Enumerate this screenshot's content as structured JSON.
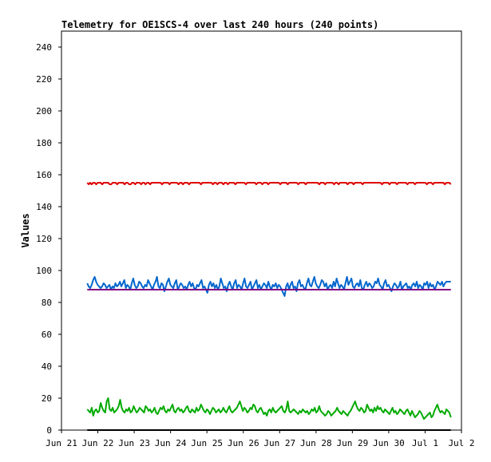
{
  "chart_data": {
    "type": "line",
    "title": "Telemetry for OE1SCS-4 over last 240 hours (240 points)",
    "xlabel": "",
    "ylabel": "Values",
    "xlim": [
      "2021-06-21",
      "2021-07-02"
    ],
    "ylim": [
      0,
      250
    ],
    "yticks": [
      0,
      20,
      40,
      60,
      80,
      100,
      120,
      140,
      160,
      180,
      200,
      220,
      240
    ],
    "xticks": [
      "2021-06-21",
      "2021-06-22",
      "2021-06-23",
      "2021-06-24",
      "2021-06-25",
      "2021-06-26",
      "2021-06-27",
      "2021-06-28",
      "2021-06-29",
      "2021-06-30",
      "2021-07-01",
      "2021-07-02"
    ],
    "xtick_labels": [
      "Jun 21",
      "Jun 22",
      "Jun 23",
      "Jun 24",
      "Jun 25",
      "Jun 26",
      "Jun 27",
      "Jun 28",
      "Jun 29",
      "Jun 30",
      "Jul 1",
      "Jul 2"
    ],
    "grid": false,
    "legend": "none",
    "x_start": "2021-06-21T17:00",
    "x_end": "2021-07-01T17:00",
    "series": [
      {
        "color": "#dd0000",
        "values": [
          155,
          154,
          155,
          154,
          155,
          155,
          154,
          155,
          155,
          155,
          154,
          155,
          155,
          155,
          155,
          154,
          154,
          155,
          155,
          155,
          154,
          155,
          155,
          155,
          155,
          154,
          155,
          155,
          154,
          154,
          155,
          155,
          154,
          155,
          155,
          155,
          154,
          155,
          155,
          154,
          155,
          155,
          154,
          155,
          155,
          155,
          155,
          155,
          155,
          155,
          154,
          155,
          155,
          155,
          155,
          154,
          155,
          155,
          155,
          155,
          155,
          154,
          155,
          155,
          154,
          155,
          155,
          155,
          154,
          155,
          155,
          155,
          155,
          155,
          155,
          155,
          154,
          155,
          155,
          155,
          155,
          155,
          155,
          155,
          154,
          155,
          155,
          154,
          155,
          155,
          155,
          154,
          155,
          155,
          154,
          155,
          155,
          155,
          155,
          154,
          155,
          155,
          155,
          155,
          155,
          155,
          154,
          155,
          155,
          155,
          155,
          155,
          155,
          154,
          155,
          155,
          155,
          154,
          155,
          155,
          155,
          154,
          155,
          155,
          155,
          155,
          155,
          155,
          155,
          154,
          155,
          155,
          155,
          155,
          154,
          155,
          155,
          155,
          155,
          155,
          155,
          154,
          155,
          155,
          155,
          155,
          154,
          155,
          155,
          155,
          155,
          155,
          155,
          155,
          155,
          154,
          155,
          155,
          155,
          154,
          155,
          155,
          155,
          155,
          155,
          154,
          155,
          155,
          154,
          155,
          155,
          155,
          155,
          155,
          154,
          155,
          155,
          155,
          154,
          155,
          155,
          155,
          155,
          155,
          154,
          155,
          155,
          155,
          155,
          155,
          155,
          155,
          155,
          155,
          155,
          155,
          155,
          154,
          155,
          155,
          155,
          155,
          154,
          155,
          155,
          155,
          155,
          154,
          155,
          155,
          155,
          155,
          155,
          155,
          154,
          155,
          155,
          155,
          155,
          154,
          155,
          155,
          155,
          155,
          155,
          155,
          155,
          154,
          155,
          155,
          155,
          154,
          155,
          155,
          155,
          155,
          155,
          155,
          155,
          154,
          155,
          155,
          155,
          154
        ]
      },
      {
        "color": "#0066cc",
        "values": [
          92,
          90,
          89,
          91,
          94,
          96,
          93,
          91,
          90,
          89,
          90,
          92,
          91,
          89,
          90,
          91,
          88,
          90,
          89,
          92,
          90,
          91,
          93,
          90,
          92,
          94,
          89,
          91,
          90,
          88,
          92,
          95,
          91,
          89,
          90,
          93,
          92,
          90,
          89,
          91,
          90,
          94,
          92,
          90,
          88,
          91,
          93,
          96,
          90,
          89,
          92,
          91,
          87,
          90,
          93,
          95,
          91,
          90,
          89,
          92,
          94,
          88,
          90,
          92,
          91,
          89,
          90,
          88,
          91,
          93,
          90,
          92,
          89,
          88,
          91,
          90,
          92,
          94,
          89,
          90,
          88,
          86,
          91,
          93,
          90,
          92,
          89,
          91,
          88,
          90,
          95,
          92,
          89,
          90,
          87,
          91,
          93,
          90,
          88,
          92,
          94,
          89,
          91,
          90,
          88,
          92,
          95,
          90,
          89,
          91,
          93,
          88,
          90,
          92,
          94,
          89,
          91,
          88,
          90,
          92,
          91,
          89,
          93,
          90,
          88,
          91,
          90,
          92,
          89,
          91,
          90,
          88,
          86,
          84,
          90,
          92,
          88,
          91,
          93,
          89,
          90,
          87,
          92,
          94,
          90,
          91,
          89,
          88,
          92,
          95,
          91,
          90,
          93,
          96,
          92,
          90,
          89,
          91,
          94,
          93,
          90,
          92,
          88,
          90,
          91,
          89,
          93,
          90,
          95,
          92,
          89,
          91,
          90,
          88,
          92,
          96,
          91,
          93,
          95,
          90,
          89,
          91,
          92,
          90,
          94,
          89,
          88,
          91,
          93,
          90,
          92,
          91,
          89,
          90,
          93,
          92,
          95,
          91,
          90,
          88,
          92,
          94,
          90,
          91,
          89,
          87,
          90,
          92,
          91,
          89,
          90,
          93,
          88,
          90,
          91,
          92,
          89,
          90,
          88,
          91,
          92,
          90,
          93,
          89,
          91,
          90,
          88,
          92,
          91,
          93,
          89,
          92,
          90,
          91,
          88,
          90,
          93,
          92,
          91,
          93,
          90,
          92,
          93,
          93,
          93,
          93
        ]
      },
      {
        "color": "#800080",
        "values": [
          88,
          88,
          88,
          88,
          88,
          88,
          88,
          88,
          88,
          88,
          88,
          88,
          88,
          88,
          88,
          88,
          88,
          88,
          88,
          88,
          88,
          88,
          88,
          88,
          88,
          88,
          88,
          88,
          88,
          88,
          88,
          88,
          88,
          88,
          88,
          88,
          88,
          88,
          88,
          88,
          88,
          88,
          88,
          88,
          88,
          88,
          88,
          88,
          88,
          88,
          88,
          88,
          88,
          88,
          88,
          88,
          88,
          88,
          88,
          88,
          88,
          88,
          88,
          88,
          88,
          88,
          88,
          88,
          88,
          88,
          88,
          88,
          88,
          88,
          88,
          88,
          88,
          88,
          88,
          88,
          88,
          88,
          88,
          88,
          88,
          88,
          88,
          88,
          88,
          88,
          88,
          88,
          88,
          88,
          88,
          88,
          88,
          88,
          88,
          88,
          88,
          88,
          88,
          88,
          88,
          88,
          88,
          88,
          88,
          88,
          88,
          88,
          88,
          88,
          88,
          88,
          88,
          88,
          88,
          88,
          88,
          88,
          88,
          88,
          88,
          88,
          88,
          88,
          88,
          88,
          88,
          88,
          88,
          88,
          88,
          88,
          88,
          88,
          88,
          88,
          88,
          88,
          88,
          88,
          88,
          88,
          88,
          88,
          88,
          88,
          88,
          88,
          88,
          88,
          88,
          88,
          88,
          88,
          88,
          88,
          88,
          88,
          88,
          88,
          88,
          88,
          88,
          88,
          88,
          88,
          88,
          88,
          88,
          88,
          88,
          88,
          88,
          88,
          88,
          88,
          88,
          88,
          88,
          88,
          88,
          88,
          88,
          88,
          88,
          88,
          88,
          88,
          88,
          88,
          88,
          88,
          88,
          88,
          88,
          88,
          88,
          88,
          88,
          88,
          88,
          88,
          88,
          88,
          88,
          88,
          88,
          88,
          88,
          88,
          88,
          88,
          88,
          88,
          88,
          88,
          88,
          88,
          88,
          88,
          88,
          88,
          88,
          88,
          88,
          88,
          88,
          88,
          88,
          88,
          88,
          88,
          88,
          88,
          88,
          88
        ]
      },
      {
        "color": "#00aa00",
        "values": [
          13,
          12,
          11,
          14,
          9,
          12,
          13,
          11,
          12,
          17,
          14,
          12,
          11,
          18,
          20,
          13,
          12,
          14,
          11,
          12,
          13,
          15,
          19,
          14,
          12,
          11,
          13,
          12,
          14,
          11,
          12,
          15,
          13,
          11,
          12,
          14,
          13,
          12,
          11,
          15,
          14,
          12,
          13,
          11,
          12,
          14,
          11,
          10,
          12,
          14,
          13,
          15,
          12,
          11,
          13,
          12,
          14,
          16,
          12,
          11,
          13,
          14,
          12,
          13,
          11,
          12,
          14,
          15,
          12,
          11,
          13,
          12,
          11,
          14,
          12,
          13,
          16,
          14,
          12,
          11,
          13,
          12,
          10,
          12,
          14,
          13,
          11,
          12,
          13,
          11,
          12,
          14,
          12,
          11,
          13,
          15,
          12,
          11,
          12,
          13,
          14,
          16,
          18,
          15,
          12,
          14,
          13,
          11,
          12,
          14,
          13,
          16,
          15,
          12,
          11,
          13,
          14,
          12,
          10,
          11,
          9,
          12,
          13,
          11,
          14,
          12,
          11,
          12,
          13,
          14,
          15,
          12,
          11,
          13,
          18,
          12,
          11,
          12,
          13,
          12,
          11,
          10,
          12,
          11,
          13,
          12,
          11,
          12,
          10,
          11,
          13,
          12,
          14,
          11,
          12,
          15,
          12,
          11,
          10,
          9,
          10,
          12,
          11,
          9,
          10,
          11,
          12,
          14,
          12,
          11,
          10,
          12,
          11,
          10,
          9,
          11,
          12,
          14,
          16,
          18,
          15,
          13,
          12,
          14,
          13,
          11,
          12,
          16,
          14,
          12,
          13,
          11,
          14,
          12,
          15,
          13,
          14,
          12,
          11,
          13,
          12,
          11,
          10,
          12,
          14,
          11,
          12,
          10,
          11,
          13,
          12,
          11,
          10,
          12,
          13,
          11,
          9,
          12,
          10,
          8,
          9,
          10,
          12,
          11,
          9,
          7,
          8,
          9,
          10,
          11,
          8,
          9,
          12,
          14,
          16,
          13,
          11,
          12,
          11,
          10,
          13,
          12,
          11,
          8
        ]
      },
      {
        "color": "#000000",
        "values": [
          0,
          0,
          0,
          0,
          0,
          0,
          0,
          0,
          0,
          0,
          0,
          0,
          0,
          0,
          0,
          0,
          0,
          0,
          0,
          0,
          0,
          0,
          0,
          0,
          0,
          0,
          0,
          0,
          0,
          0,
          0,
          0,
          0,
          0,
          0,
          0,
          0,
          0,
          0,
          0,
          0,
          0,
          0,
          0,
          0,
          0,
          0,
          0,
          0,
          0,
          0,
          0,
          0,
          0,
          0,
          0,
          0,
          0,
          0,
          0,
          0,
          0,
          0,
          0,
          0,
          0,
          0,
          0,
          0,
          0,
          0,
          0,
          0,
          0,
          0,
          0,
          0,
          0,
          0,
          0,
          0,
          0,
          0,
          0,
          0,
          0,
          0,
          0,
          0,
          0,
          0,
          0,
          0,
          0,
          0,
          0,
          0,
          0,
          0,
          0,
          0,
          0,
          0,
          0,
          0,
          0,
          0,
          0,
          0,
          0,
          0,
          0,
          0,
          0,
          0,
          0,
          0,
          0,
          0,
          0,
          0,
          0,
          0,
          0,
          0,
          0,
          0,
          0,
          0,
          0,
          0,
          0,
          0,
          0,
          0,
          0,
          0,
          0,
          0,
          0,
          0,
          0,
          0,
          0,
          0,
          0,
          0,
          0,
          0,
          0,
          0,
          0,
          0,
          0,
          0,
          0,
          0,
          0,
          0,
          0,
          0,
          0,
          0,
          0,
          0,
          0,
          0,
          0,
          0,
          0,
          0,
          0,
          0,
          0,
          0,
          0,
          0,
          0,
          0,
          0,
          0,
          0,
          0,
          0,
          0,
          0,
          0,
          0,
          0,
          0,
          0,
          0,
          0,
          0,
          0,
          0,
          0,
          0,
          0,
          0,
          0,
          0,
          0,
          0,
          0,
          0,
          0,
          0,
          0,
          0,
          0,
          0,
          0,
          0,
          0,
          0,
          0,
          0,
          0,
          0,
          0,
          0,
          0,
          0,
          0,
          0,
          0,
          0,
          0,
          0,
          0,
          0,
          0,
          0,
          0,
          0,
          0,
          0,
          0,
          0
        ]
      }
    ]
  }
}
